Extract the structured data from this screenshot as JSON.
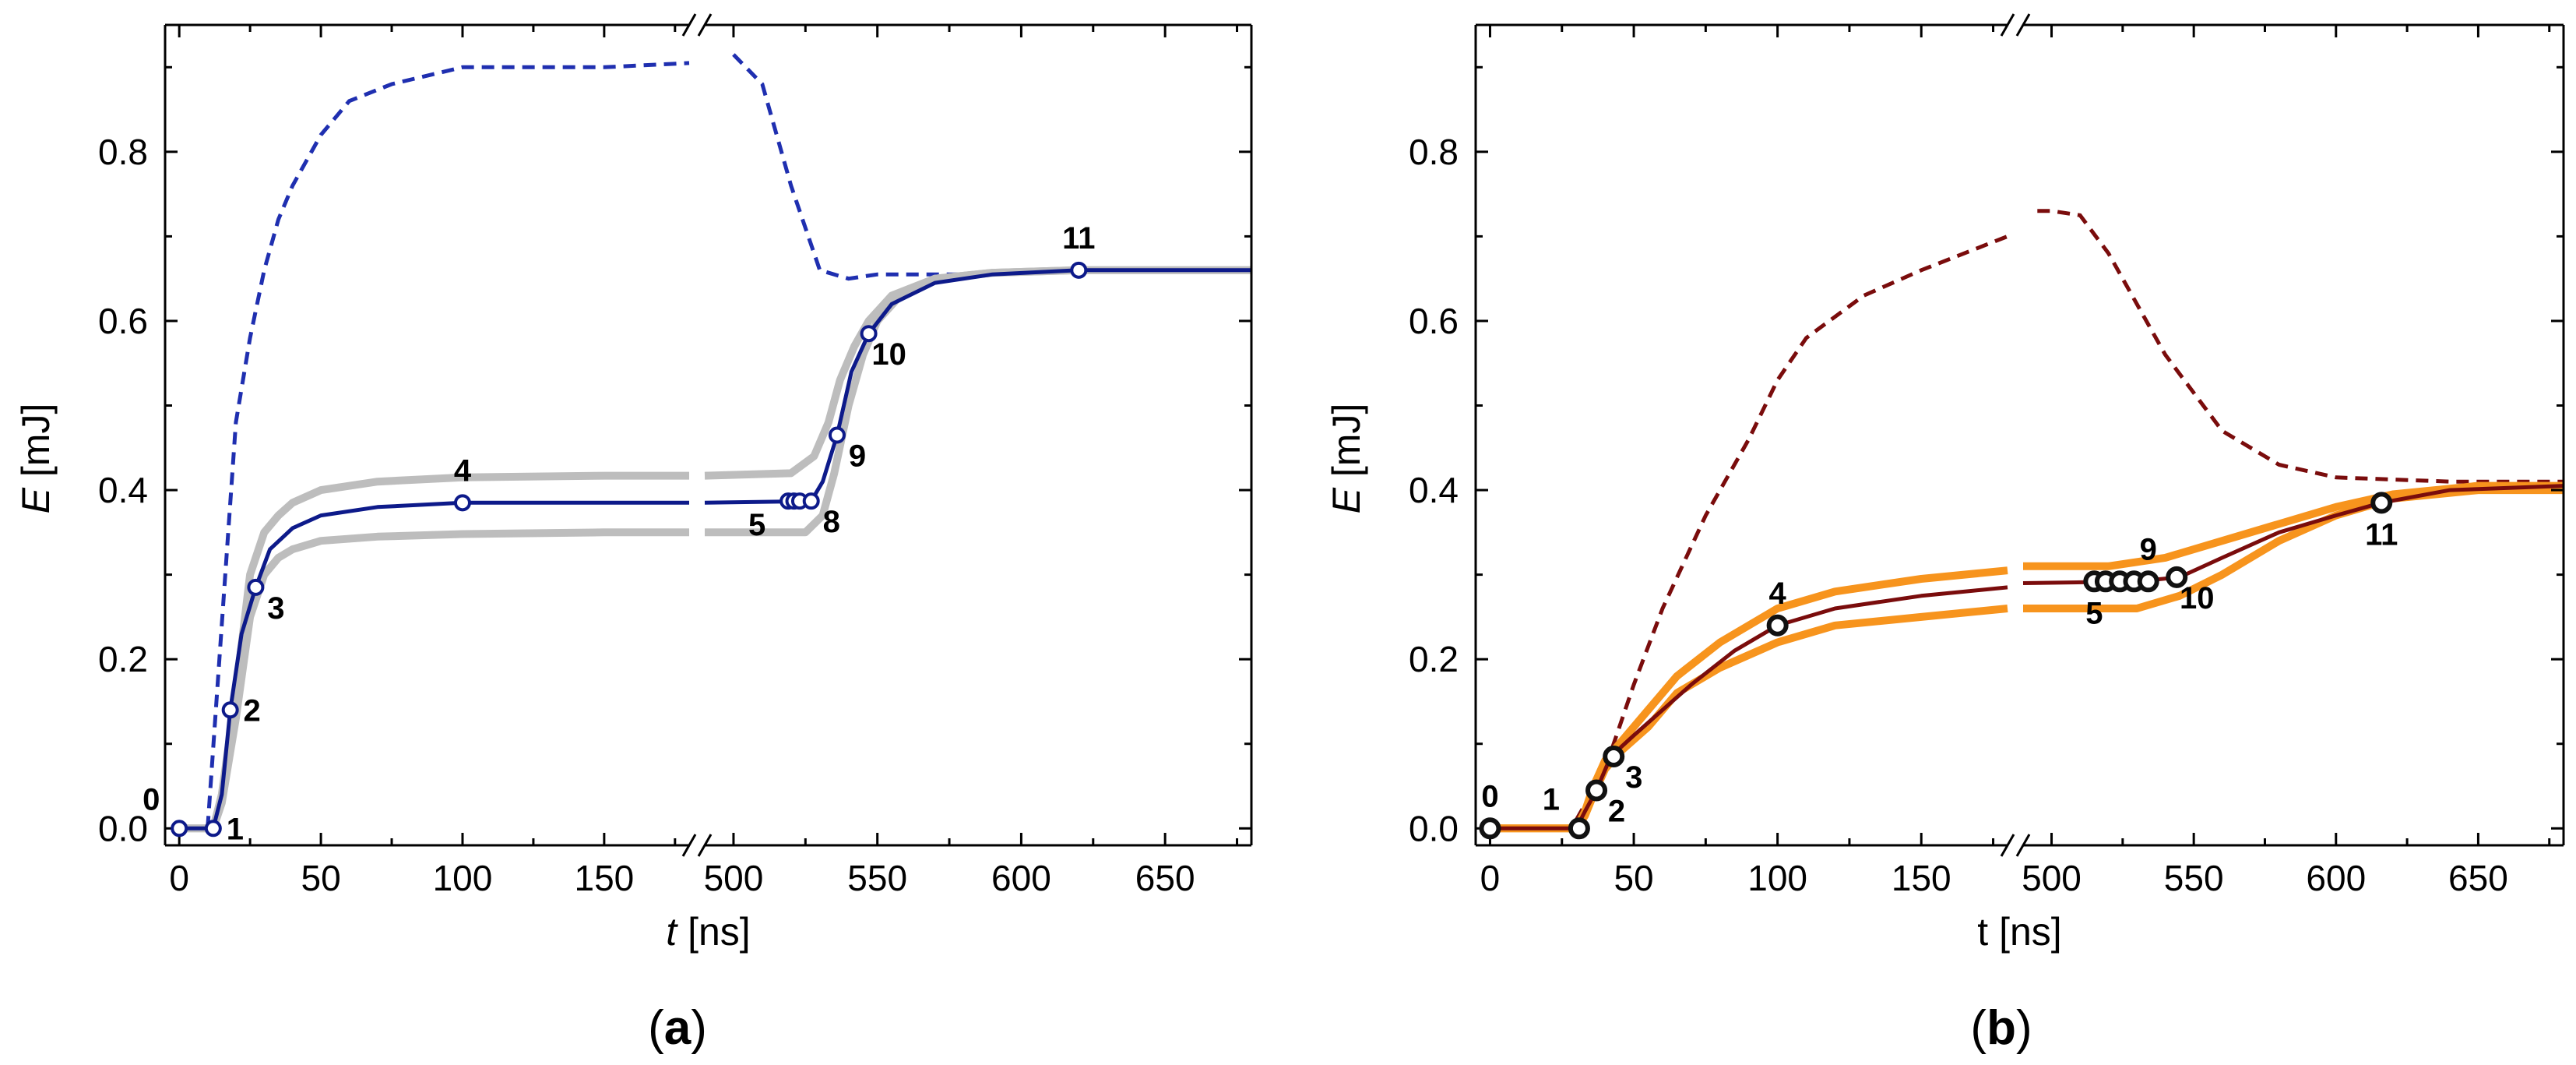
{
  "chart_data": [
    {
      "id": "a",
      "type": "line",
      "panel_label": "a",
      "xlabel": "t",
      "xlabel_italic": true,
      "xlabel_unit": "[ns]",
      "ylabel": "E",
      "ylabel_unit": "[mJ]",
      "ylim": [
        -0.02,
        0.95
      ],
      "yticks": [
        0.0,
        0.2,
        0.4,
        0.6,
        0.8
      ],
      "ytick_labels": [
        "0.0",
        "0.2",
        "0.4",
        "0.6",
        "0.8"
      ],
      "axis_break": {
        "left_range": [
          -5,
          180
        ],
        "right_range": [
          490,
          680
        ]
      },
      "xticks": [
        0,
        50,
        100,
        150,
        500,
        550,
        600,
        650
      ],
      "xtick_labels": [
        "0",
        "50",
        "100",
        "150",
        "500",
        "550",
        "600",
        "650"
      ],
      "colors": {
        "main": "#0d1a8a",
        "dashed": "#1f2fb0",
        "band": "#bdbdbd",
        "marker_fill": "#ffffff"
      },
      "series": [
        {
          "name": "dashed",
          "style": "dashed",
          "x": [
            10,
            20,
            25,
            30,
            35,
            40,
            50,
            60,
            75,
            100,
            120,
            150,
            180,
            500,
            510,
            520,
            530,
            540,
            550,
            580,
            620,
            680
          ],
          "y": [
            0.0,
            0.48,
            0.58,
            0.66,
            0.72,
            0.76,
            0.82,
            0.86,
            0.88,
            0.9,
            0.9,
            0.9,
            0.905,
            0.915,
            0.88,
            0.76,
            0.66,
            0.65,
            0.655,
            0.655,
            0.66,
            0.66
          ]
        },
        {
          "name": "upper-band",
          "style": "band",
          "x": [
            0,
            12,
            15,
            20,
            25,
            30,
            35,
            40,
            50,
            70,
            100,
            150,
            180,
            490,
            520,
            528,
            533,
            537,
            542,
            547,
            555,
            570,
            590,
            620,
            680
          ],
          "y": [
            0.0,
            0.0,
            0.04,
            0.16,
            0.3,
            0.35,
            0.37,
            0.385,
            0.4,
            0.41,
            0.415,
            0.417,
            0.417,
            0.417,
            0.42,
            0.44,
            0.48,
            0.53,
            0.57,
            0.6,
            0.63,
            0.65,
            0.657,
            0.66,
            0.66
          ]
        },
        {
          "name": "lower-band",
          "style": "band",
          "x": [
            0,
            12,
            15,
            20,
            25,
            30,
            35,
            40,
            50,
            70,
            100,
            150,
            180,
            490,
            525,
            531,
            535,
            540,
            545,
            550,
            558,
            570,
            590,
            620,
            680
          ],
          "y": [
            0.0,
            0.0,
            0.03,
            0.13,
            0.25,
            0.3,
            0.32,
            0.33,
            0.34,
            0.345,
            0.348,
            0.35,
            0.35,
            0.35,
            0.35,
            0.37,
            0.42,
            0.5,
            0.56,
            0.6,
            0.63,
            0.65,
            0.657,
            0.66,
            0.66
          ]
        },
        {
          "name": "main",
          "style": "solid",
          "x": [
            0,
            12,
            15,
            18,
            22,
            27,
            32,
            40,
            50,
            70,
            100,
            150,
            180,
            490,
            527,
            531,
            536,
            541,
            547,
            555,
            570,
            590,
            620,
            680
          ],
          "y": [
            0.0,
            0.0,
            0.04,
            0.14,
            0.23,
            0.285,
            0.33,
            0.355,
            0.37,
            0.38,
            0.385,
            0.385,
            0.385,
            0.385,
            0.387,
            0.41,
            0.465,
            0.54,
            0.585,
            0.62,
            0.645,
            0.655,
            0.66,
            0.66
          ]
        }
      ],
      "points": [
        {
          "label": "0",
          "x": 0,
          "y": 0.0,
          "pos": "upper-left"
        },
        {
          "label": "1",
          "x": 12,
          "y": 0.0,
          "pos": "right"
        },
        {
          "label": "2",
          "x": 18,
          "y": 0.14,
          "pos": "right"
        },
        {
          "label": "3",
          "x": 27,
          "y": 0.285,
          "pos": "lower-right"
        },
        {
          "label": "4",
          "x": 100,
          "y": 0.385,
          "pos": "above"
        },
        {
          "label": "5",
          "x": 519,
          "y": 0.387,
          "pos": "lower-left"
        },
        {
          "label": "",
          "x": 521,
          "y": 0.387,
          "pos": "none"
        },
        {
          "label": "",
          "x": 523,
          "y": 0.387,
          "pos": "none"
        },
        {
          "label": "8",
          "x": 527,
          "y": 0.387,
          "pos": "lower-right"
        },
        {
          "label": "9",
          "x": 536,
          "y": 0.465,
          "pos": "lower-right"
        },
        {
          "label": "10",
          "x": 547,
          "y": 0.585,
          "pos": "lower-right"
        },
        {
          "label": "11",
          "x": 620,
          "y": 0.66,
          "pos": "above"
        }
      ]
    },
    {
      "id": "b",
      "type": "line",
      "panel_label": "b",
      "xlabel": "t",
      "xlabel_italic": false,
      "xlabel_unit": "[ns]",
      "ylabel": "E",
      "ylabel_unit": "[mJ]",
      "ylim": [
        -0.02,
        0.95
      ],
      "yticks": [
        0.0,
        0.2,
        0.4,
        0.6,
        0.8
      ],
      "ytick_labels": [
        "0.0",
        "0.2",
        "0.4",
        "0.6",
        "0.8"
      ],
      "axis_break": {
        "left_range": [
          -5,
          180
        ],
        "right_range": [
          490,
          680
        ]
      },
      "xticks": [
        0,
        50,
        100,
        150,
        500,
        550,
        600,
        650
      ],
      "xtick_labels": [
        "0",
        "50",
        "100",
        "150",
        "500",
        "550",
        "600",
        "650"
      ],
      "colors": {
        "main": "#7a0c0c",
        "dashed": "#7a0c0c",
        "band": "#f7941d",
        "marker_fill": "#ffffff"
      },
      "series": [
        {
          "name": "dashed",
          "style": "dashed",
          "x": [
            30,
            40,
            50,
            60,
            75,
            90,
            100,
            110,
            130,
            150,
            180,
            495,
            500,
            510,
            520,
            540,
            560,
            580,
            600,
            640,
            680
          ],
          "y": [
            0.01,
            0.07,
            0.17,
            0.26,
            0.37,
            0.46,
            0.53,
            0.58,
            0.63,
            0.66,
            0.7,
            0.73,
            0.73,
            0.725,
            0.68,
            0.56,
            0.47,
            0.43,
            0.415,
            0.41,
            0.41
          ]
        },
        {
          "name": "upper-band",
          "style": "band",
          "x": [
            0,
            30,
            33,
            36,
            40,
            45,
            55,
            65,
            80,
            100,
            120,
            150,
            180,
            490,
            520,
            540,
            560,
            580,
            600,
            620,
            650,
            680
          ],
          "y": [
            0.0,
            0.0,
            0.02,
            0.05,
            0.08,
            0.1,
            0.14,
            0.18,
            0.22,
            0.26,
            0.28,
            0.295,
            0.305,
            0.31,
            0.31,
            0.32,
            0.34,
            0.36,
            0.38,
            0.395,
            0.405,
            0.405
          ]
        },
        {
          "name": "lower-band",
          "style": "band",
          "x": [
            0,
            30,
            33,
            36,
            40,
            45,
            55,
            65,
            80,
            100,
            120,
            150,
            180,
            490,
            530,
            545,
            560,
            580,
            600,
            620,
            650,
            680
          ],
          "y": [
            0.0,
            0.0,
            0.015,
            0.04,
            0.07,
            0.09,
            0.12,
            0.16,
            0.19,
            0.22,
            0.24,
            0.25,
            0.26,
            0.26,
            0.26,
            0.275,
            0.3,
            0.34,
            0.37,
            0.39,
            0.4,
            0.4
          ]
        },
        {
          "name": "main",
          "style": "solid",
          "x": [
            0,
            30,
            33,
            37,
            42,
            50,
            60,
            70,
            85,
            100,
            120,
            150,
            180,
            490,
            530,
            545,
            560,
            580,
            600,
            616,
            640,
            680
          ],
          "y": [
            0.0,
            0.0,
            0.02,
            0.045,
            0.085,
            0.11,
            0.14,
            0.17,
            0.21,
            0.24,
            0.26,
            0.275,
            0.285,
            0.29,
            0.292,
            0.297,
            0.32,
            0.35,
            0.37,
            0.385,
            0.4,
            0.405
          ]
        }
      ],
      "points": [
        {
          "label": "0",
          "x": 0,
          "y": 0.0,
          "pos": "above"
        },
        {
          "label": "1",
          "x": 31,
          "y": 0.0,
          "pos": "upper-left"
        },
        {
          "label": "2",
          "x": 37,
          "y": 0.045,
          "pos": "lower-right"
        },
        {
          "label": "3",
          "x": 43,
          "y": 0.085,
          "pos": "lower-right"
        },
        {
          "label": "4",
          "x": 100,
          "y": 0.24,
          "pos": "above"
        },
        {
          "label": "5",
          "x": 515,
          "y": 0.292,
          "pos": "below"
        },
        {
          "label": "",
          "x": 519,
          "y": 0.292,
          "pos": "none"
        },
        {
          "label": "",
          "x": 524,
          "y": 0.292,
          "pos": "none"
        },
        {
          "label": "",
          "x": 529,
          "y": 0.292,
          "pos": "none"
        },
        {
          "label": "9",
          "x": 534,
          "y": 0.292,
          "pos": "above"
        },
        {
          "label": "10",
          "x": 544,
          "y": 0.297,
          "pos": "lower-right"
        },
        {
          "label": "11",
          "x": 616,
          "y": 0.385,
          "pos": "below"
        }
      ]
    }
  ]
}
